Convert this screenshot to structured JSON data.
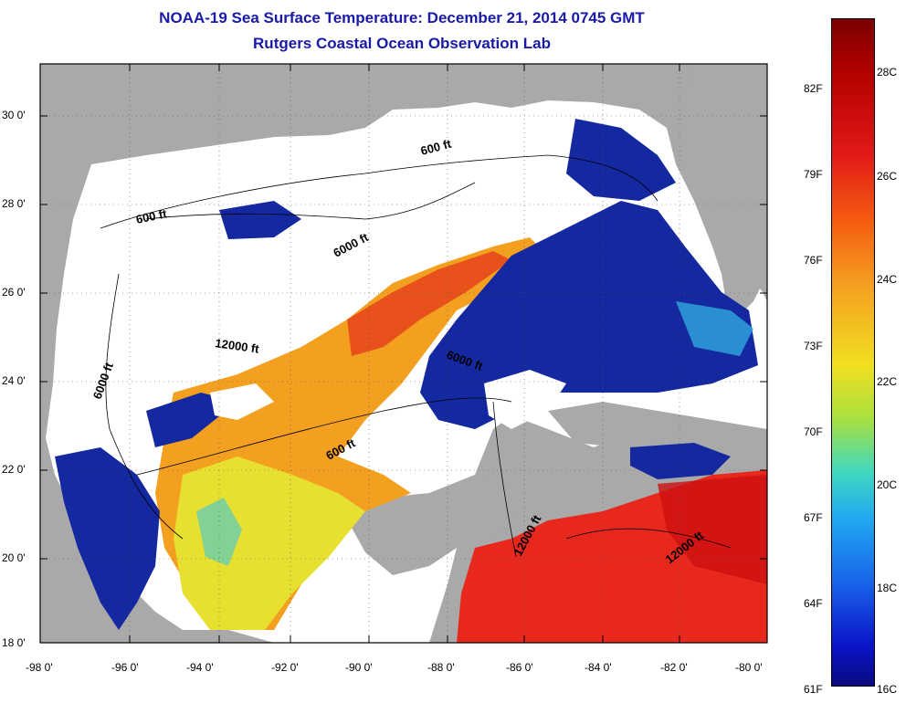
{
  "title": "NOAA-19 Sea Surface Temperature:  December 21, 2014 0745 GMT",
  "subtitle": "Rutgers Coastal Ocean Observation Lab",
  "lat_ticks": [
    "30 0'",
    "28 0'",
    "26 0'",
    "24 0'",
    "22 0'",
    "20 0'",
    "18 0'"
  ],
  "lon_ticks": [
    "-98 0'",
    "-96 0'",
    "-94 0'",
    "-92 0'",
    "-90 0'",
    "-88 0'",
    "-86 0'",
    "-84 0'",
    "-82 0'",
    "-80 0'"
  ],
  "contours": {
    "c600_north": "600 ft",
    "c600_west": "600 ft",
    "c6000_north": "6000 ft",
    "c6000_west": "6000 ft",
    "c12000_center": "12000 ft",
    "c6000_east": "6000 ft",
    "c600_center": "600 ft",
    "c12000_yucatan": "12000 ft",
    "c12000_carib": "12000 ft"
  },
  "colorbar": {
    "fahrenheit": [
      "82F",
      "79F",
      "76F",
      "73F",
      "70F",
      "67F",
      "64F",
      "61F"
    ],
    "celsius": [
      "28C",
      "26C",
      "24C",
      "22C",
      "20C",
      "18C",
      "16C"
    ]
  },
  "colors": {
    "land": "#a9a9a9",
    "cloud": "#ffffff",
    "title": "#1a1aa8"
  }
}
